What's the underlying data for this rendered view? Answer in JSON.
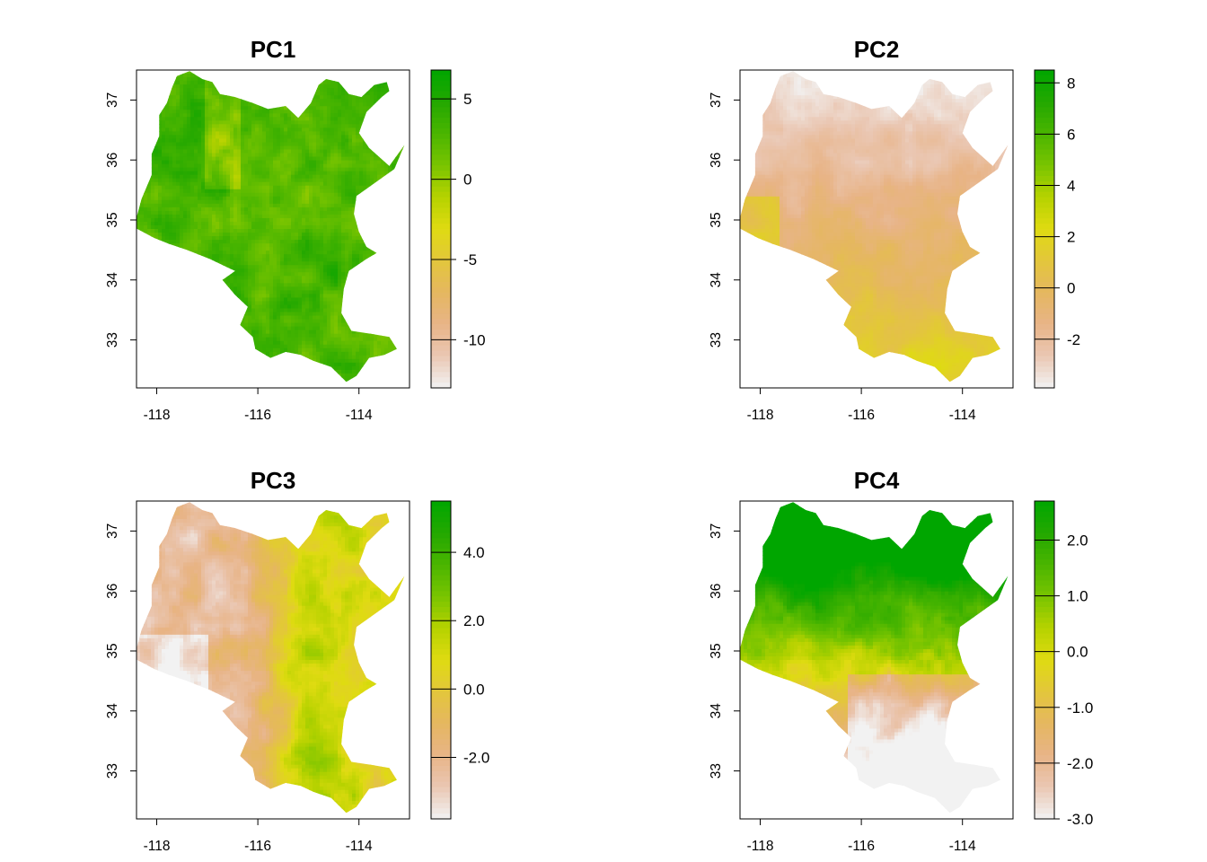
{
  "colors": {
    "palette_low_to_high": [
      "#f2f2f2",
      "#eac7b3",
      "#e8b487",
      "#e5b760",
      "#e3c63c",
      "#dfdb11",
      "#b6d200",
      "#79c400",
      "#4ab500",
      "#23a800",
      "#00a600"
    ],
    "axis": "#000000",
    "background": "#ffffff"
  },
  "chart_data": [
    {
      "type": "heatmap",
      "title": "PC1",
      "xlim": [
        -118.4,
        -113.0
      ],
      "ylim": [
        32.2,
        37.5
      ],
      "x_ticks": [
        -118,
        -116,
        -114
      ],
      "x_tick_labels": [
        "-118",
        "-116",
        "-114"
      ],
      "y_ticks": [
        33,
        34,
        35,
        36,
        37
      ],
      "y_tick_labels": [
        "33",
        "34",
        "35",
        "36",
        "37"
      ],
      "legend": {
        "range": [
          -13.0,
          6.8
        ],
        "ticks": [
          5,
          0,
          -5,
          -10
        ],
        "tick_labels": [
          "5",
          "0",
          "-5",
          "-10"
        ],
        "placement": "right"
      },
      "dominant_value_range": [
        -1,
        6
      ]
    },
    {
      "type": "heatmap",
      "title": "PC2",
      "xlim": [
        -118.4,
        -113.0
      ],
      "ylim": [
        32.2,
        37.5
      ],
      "x_ticks": [
        -118,
        -116,
        -114
      ],
      "x_tick_labels": [
        "-118",
        "-116",
        "-114"
      ],
      "y_ticks": [
        33,
        34,
        35,
        36,
        37
      ],
      "y_tick_labels": [
        "33",
        "34",
        "35",
        "36",
        "37"
      ],
      "legend": {
        "range": [
          -3.9,
          8.5
        ],
        "ticks": [
          8,
          6,
          4,
          2,
          0,
          -2
        ],
        "tick_labels": [
          "8",
          "6",
          "4",
          "2",
          "0",
          "-2"
        ],
        "placement": "right"
      },
      "dominant_value_range": [
        -2,
        3
      ]
    },
    {
      "type": "heatmap",
      "title": "PC3",
      "xlim": [
        -118.4,
        -113.0
      ],
      "ylim": [
        32.2,
        37.5
      ],
      "x_ticks": [
        -118,
        -116,
        -114
      ],
      "x_tick_labels": [
        "-118",
        "-116",
        "-114"
      ],
      "y_ticks": [
        33,
        34,
        35,
        36,
        37
      ],
      "y_tick_labels": [
        "33",
        "34",
        "35",
        "36",
        "37"
      ],
      "legend": {
        "range": [
          -3.8,
          5.5
        ],
        "ticks": [
          4,
          2,
          0,
          -2
        ],
        "tick_labels": [
          "4.0",
          "2.0",
          "0.0",
          "-2.0"
        ],
        "placement": "right"
      },
      "dominant_value_range": [
        -3,
        4
      ]
    },
    {
      "type": "heatmap",
      "title": "PC4",
      "xlim": [
        -118.4,
        -113.0
      ],
      "ylim": [
        32.2,
        37.5
      ],
      "x_ticks": [
        -118,
        -116,
        -114
      ],
      "x_tick_labels": [
        "-118",
        "-116",
        "-114"
      ],
      "y_ticks": [
        33,
        34,
        35,
        36,
        37
      ],
      "y_tick_labels": [
        "33",
        "34",
        "35",
        "36",
        "37"
      ],
      "legend": {
        "range": [
          -3.0,
          2.7
        ],
        "ticks": [
          2,
          1,
          0,
          -1,
          -2,
          -3
        ],
        "tick_labels": [
          "2.0",
          "1.0",
          "0.0",
          "-1.0",
          "-2.0",
          "-3.0"
        ],
        "placement": "right"
      },
      "dominant_value_range": [
        -2.5,
        2.5
      ]
    }
  ]
}
